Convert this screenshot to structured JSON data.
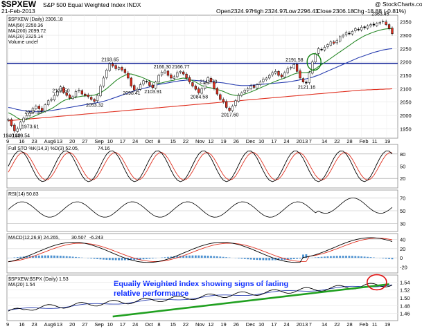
{
  "header": {
    "symbol": "$SPXEW",
    "title": "S&P 500 Equal Weighted Index INDX",
    "date": "21-Feb-2013",
    "watermark": "@ StockCharts.com",
    "ohlc": {
      "open_label": "Open",
      "open": "2324.97",
      "high_label": "High",
      "high": "2324.97",
      "low_label": "Low",
      "low": "2296.43",
      "close_label": "Close",
      "close": "2306.18",
      "chg_label": "Chg",
      "chg": "-18.88 (-0.81%)"
    }
  },
  "legend": {
    "main": "$SPXEW (Daily) 2306.18",
    "ma50": "MA(50) 2250.36",
    "ma200": "MA(200) 2099.72",
    "ma20": "MA(20) 2325.14",
    "volume": "Volume undef"
  },
  "colors": {
    "candle": "#000000",
    "ma50": "#2a3fb0",
    "ma200": "#e03020",
    "ma20": "#2a8a2a",
    "hline": "#1a2a9a",
    "macd_hist": "#4a90d0",
    "trend": "#20a020",
    "circle_green": "#108010",
    "circle_red": "#e01010",
    "annotation": "#1030ff"
  },
  "annotation": {
    "line1": "Equally Weighted Index showing signs of fading",
    "line2": "relative performance"
  },
  "chart_data": [
    {
      "type": "line",
      "title": "$SPXEW (Daily) 2306.18",
      "y_ticks": [
        "2350",
        "2300",
        "2250",
        "2200",
        "2150",
        "2100",
        "2050",
        "2000",
        "1950"
      ],
      "ylim": [
        1920,
        2370
      ],
      "horizontal_line": 2195,
      "series": [
        {
          "name": "$SPXEW",
          "values": [
            1985,
            1962,
            1942,
            1950,
            1975,
            1990,
            2000,
            2010,
            2027,
            2035,
            2025,
            2018,
            2040,
            2055,
            2060,
            2075,
            2090,
            2107,
            2085,
            2075,
            2065,
            2070,
            2090,
            2095,
            2080,
            2075,
            2070,
            2060,
            2053,
            2075,
            2110,
            2140,
            2170,
            2193,
            2185,
            2175,
            2180,
            2170,
            2160,
            2140,
            2110,
            2095,
            2098,
            2115,
            2130,
            2125,
            2112,
            2104,
            2125,
            2150,
            2162,
            2166,
            2150,
            2140,
            2145,
            2160,
            2165,
            2155,
            2140,
            2125,
            2110,
            2098,
            2085,
            2100,
            2120,
            2141,
            2125,
            2100,
            2080,
            2060,
            2050,
            2030,
            2018,
            2035,
            2055,
            2075,
            2085,
            2095,
            2100,
            2110,
            2105,
            2115,
            2125,
            2135,
            2140,
            2150,
            2160,
            2165,
            2150,
            2145,
            2160,
            2175,
            2180,
            2191,
            2165,
            2140,
            2125,
            2121,
            2160,
            2200,
            2230,
            2250,
            2245,
            2255,
            2265,
            2275,
            2270,
            2280,
            2295,
            2300,
            2310,
            2305,
            2315,
            2325,
            2320,
            2330,
            2328,
            2335,
            2340,
            2338,
            2345,
            2348,
            2352,
            2340,
            2325,
            2306
          ]
        },
        {
          "name": "MA(20)",
          "values": [
            2010,
            2005,
            1998,
            1990,
            1985,
            1983,
            1985,
            1990,
            1995,
            2000,
            2005,
            2010,
            2015,
            2020,
            2025,
            2032,
            2040,
            2048,
            2055,
            2060,
            2063,
            2065,
            2068,
            2070,
            2072,
            2073,
            2074,
            2075,
            2076,
            2080,
            2085,
            2092,
            2100,
            2110,
            2120,
            2130,
            2138,
            2145,
            2150,
            2155,
            2155,
            2152,
            2148,
            2145,
            2140,
            2135,
            2130,
            2125,
            2122,
            2120,
            2122,
            2125,
            2128,
            2130,
            2132,
            2135,
            2138,
            2140,
            2138,
            2135,
            2130,
            2125,
            2118,
            2112,
            2108,
            2105,
            2103,
            2100,
            2097,
            2094,
            2090,
            2085,
            2080,
            2077,
            2075,
            2075,
            2077,
            2080,
            2084,
            2088,
            2093,
            2098,
            2103,
            2108,
            2113,
            2118,
            2123,
            2128,
            2132,
            2136,
            2140,
            2145,
            2150,
            2155,
            2158,
            2160,
            2160,
            2160,
            2163,
            2168,
            2175,
            2183,
            2190,
            2198,
            2206,
            2214,
            2222,
            2230,
            2238,
            2246,
            2254,
            2262,
            2270,
            2278,
            2285,
            2292,
            2298,
            2303,
            2308,
            2312,
            2316,
            2319,
            2322,
            2324,
            2325,
            2325
          ]
        },
        {
          "name": "MA(50)",
          "values": [
            2030,
            2028,
            2025,
            2022,
            2020,
            2018,
            2016,
            2015,
            2014,
            2014,
            2014,
            2015,
            2016,
            2017,
            2018,
            2020,
            2022,
            2024,
            2026,
            2028,
            2030,
            2032,
            2034,
            2036,
            2038,
            2040,
            2042,
            2044,
            2046,
            2048,
            2050,
            2053,
            2056,
            2060,
            2064,
            2068,
            2072,
            2076,
            2080,
            2084,
            2088,
            2092,
            2095,
            2098,
            2101,
            2104,
            2107,
            2110,
            2113,
            2116,
            2118,
            2120,
            2122,
            2124,
            2126,
            2128,
            2130,
            2131,
            2132,
            2132,
            2132,
            2131,
            2130,
            2129,
            2128,
            2127,
            2126,
            2125,
            2124,
            2123,
            2122,
            2120,
            2118,
            2116,
            2114,
            2113,
            2112,
            2112,
            2112,
            2113,
            2114,
            2115,
            2116,
            2117,
            2118,
            2119,
            2120,
            2121,
            2122,
            2123,
            2124,
            2125,
            2127,
            2129,
            2131,
            2133,
            2135,
            2137,
            2140,
            2143,
            2147,
            2151,
            2156,
            2161,
            2166,
            2171,
            2176,
            2181,
            2186,
            2191,
            2196,
            2201,
            2206,
            2211,
            2216,
            2220,
            2224,
            2228,
            2232,
            2236,
            2239,
            2242,
            2245,
            2247,
            2249,
            2250
          ]
        },
        {
          "name": "MA(200)",
          "values": [
            1980,
            1981,
            1982,
            1983,
            1984,
            1985,
            1986,
            1987,
            1988,
            1989,
            1990,
            1991,
            1992,
            1993,
            1994,
            1995,
            1996,
            1997,
            1998,
            1999,
            2000,
            2001,
            2002,
            2003,
            2004,
            2005,
            2006,
            2007,
            2008,
            2009,
            2010,
            2011,
            2012,
            2013,
            2014,
            2015,
            2016,
            2017,
            2018,
            2019,
            2020,
            2021,
            2022,
            2023,
            2024,
            2025,
            2026,
            2027,
            2028,
            2029,
            2030,
            2031,
            2032,
            2033,
            2034,
            2035,
            2036,
            2037,
            2038,
            2039,
            2040,
            2041,
            2042,
            2043,
            2044,
            2045,
            2046,
            2047,
            2048,
            2049,
            2050,
            2051,
            2052,
            2053,
            2054,
            2055,
            2056,
            2057,
            2058,
            2059,
            2060,
            2061,
            2062,
            2063,
            2064,
            2065,
            2066,
            2067,
            2068,
            2069,
            2070,
            2071,
            2072,
            2073,
            2074,
            2075,
            2076,
            2077,
            2078,
            2079,
            2080,
            2081,
            2082,
            2083,
            2084,
            2085,
            2086,
            2087,
            2088,
            2089,
            2090,
            2091,
            2092,
            2093,
            2094,
            2095,
            2095,
            2096,
            2096,
            2097,
            2097,
            2098,
            2098,
            2099,
            2099,
            2100
          ]
        }
      ],
      "price_labels": [
        {
          "text": "2027.18",
          "i": 8,
          "v": 2027
        },
        {
          "text": "1940.40",
          "i": 1,
          "v": 1940
        },
        {
          "text": "1939.54",
          "i": 4,
          "v": 1939
        },
        {
          "text": "1973.61",
          "i": 7,
          "v": 1973
        },
        {
          "text": "2107.50",
          "i": 17,
          "v": 2107
        },
        {
          "text": "2053.32",
          "i": 28,
          "v": 2053
        },
        {
          "text": "2193.65",
          "i": 33,
          "v": 2193
        },
        {
          "text": "2098.41",
          "i": 40,
          "v": 2098
        },
        {
          "text": "2166.30",
          "i": 50,
          "v": 2166
        },
        {
          "text": "2103.91",
          "i": 47,
          "v": 2103
        },
        {
          "text": "2166.77",
          "i": 56,
          "v": 2166
        },
        {
          "text": "2141.70",
          "i": 65,
          "v": 2141
        },
        {
          "text": "2084.58",
          "i": 62,
          "v": 2084
        },
        {
          "text": "2017.60",
          "i": 72,
          "v": 2017
        },
        {
          "text": "2191.58",
          "i": 93,
          "v": 2191
        },
        {
          "text": "2121.16",
          "i": 97,
          "v": 2121
        },
        {
          "text": "2363.45",
          "i": 121,
          "v": 2363
        }
      ]
    },
    {
      "type": "line",
      "title": "Full STO %K(14,3) %D(3) 52.05, 74.16",
      "label_main": "Full STO %K(14,3) %D(3) 52.05,",
      "label_val": "74.16",
      "y_ticks": [
        "80",
        "50",
        "20"
      ],
      "ylim": [
        0,
        100
      ]
    },
    {
      "type": "line",
      "title": "RSI(14) 50.83",
      "y_ticks": [
        "70",
        "50",
        "30"
      ],
      "ylim": [
        20,
        80
      ]
    },
    {
      "type": "line",
      "title": "MACD(12,26,9) 24.265, 30.507, -6.243",
      "label_main": "MACD(12,26,9) 24.265,",
      "label_sig": "30.507",
      "label_hist": "-6.243",
      "y_ticks": [
        "40",
        "20",
        "0",
        "-20"
      ],
      "ylim": [
        -30,
        50
      ]
    },
    {
      "type": "line",
      "title": "$SPXEW:$SPX (Daily) 1.53",
      "label_main": "$SPXEW:$SPX (Daily) 1.53",
      "label_ma": "MA(20) 1.54",
      "y_ticks": [
        "1.54",
        "1.52",
        "1.50",
        "1.48",
        "1.46"
      ],
      "ylim": [
        1.445,
        1.555
      ]
    }
  ],
  "x_axis": {
    "labels_top": [
      "9",
      "16",
      "23",
      "Aug6",
      "13",
      "20",
      "27",
      "Sep",
      "10",
      "17",
      "24",
      "Oct",
      "8",
      "15",
      "22",
      "Nov",
      "12",
      "19",
      "26",
      "Dec",
      "10",
      "17",
      "24",
      "2013",
      "7",
      "14",
      "22",
      "28",
      "Feb",
      "11",
      "19"
    ],
    "labels_bottom": [
      "9",
      "16",
      "23",
      "Aug6",
      "13",
      "20",
      "27",
      "Sep",
      "10",
      "17",
      "24",
      "Oct",
      "8",
      "15",
      "22",
      "Nov",
      "12",
      "19",
      "26",
      "Dec",
      "10",
      "17",
      "24",
      "2013",
      "7",
      "14",
      "22",
      "28",
      "Feb",
      "11",
      "19"
    ]
  }
}
